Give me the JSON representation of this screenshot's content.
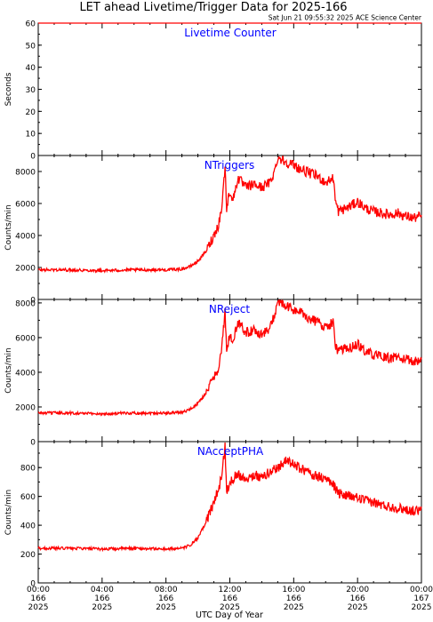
{
  "title": "LET ahead Livetime/Trigger Data for 2025-166",
  "subtitle": "Sat Jun 21 09:55:32 2025 ACE Science Center",
  "xlabel": "UTC Day of Year",
  "colors": {
    "line": "#ff0000",
    "panel_title": "#0000ff",
    "axes": "#000000",
    "background": "#ffffff"
  },
  "x_ticks": [
    {
      "time": "00:00",
      "day": "166",
      "year": "2025",
      "hour": 0
    },
    {
      "time": "04:00",
      "day": "166",
      "year": "2025",
      "hour": 4
    },
    {
      "time": "08:00",
      "day": "166",
      "year": "2025",
      "hour": 8
    },
    {
      "time": "12:00",
      "day": "166",
      "year": "2025",
      "hour": 12
    },
    {
      "time": "16:00",
      "day": "166",
      "year": "2025",
      "hour": 16
    },
    {
      "time": "20:00",
      "day": "166",
      "year": "2025",
      "hour": 20
    },
    {
      "time": "00:00",
      "day": "167",
      "year": "2025",
      "hour": 24
    }
  ],
  "chart_data": [
    {
      "type": "line",
      "title": "Livetime Counter",
      "ylabel": "Seconds",
      "ylim": [
        0,
        60
      ],
      "yticks": [
        0,
        10,
        20,
        30,
        40,
        50,
        60
      ],
      "x": [
        0,
        24
      ],
      "values": [
        60,
        60
      ]
    },
    {
      "type": "line",
      "title": "NTriggers",
      "ylabel": "Counts/min",
      "ylim": [
        0,
        9000
      ],
      "yticks": [
        0,
        2000,
        4000,
        6000,
        8000
      ],
      "x": [
        0,
        2,
        4,
        6,
        8,
        9,
        9.5,
        10,
        10.5,
        11,
        11.3,
        11.5,
        11.7,
        11.8,
        12,
        12.2,
        12.5,
        13,
        13.5,
        14,
        14.5,
        14.8,
        15,
        15.5,
        16,
        16.5,
        17,
        17.5,
        18,
        18.5,
        18.6,
        18.8,
        19.5,
        20,
        20.5,
        21,
        21.5,
        22,
        22.5,
        23,
        23.5,
        24
      ],
      "values": [
        1850,
        1850,
        1800,
        1850,
        1850,
        1900,
        2050,
        2400,
        3000,
        4000,
        4700,
        5800,
        8300,
        5700,
        6800,
        6200,
        7600,
        7000,
        7200,
        7000,
        7300,
        8000,
        8900,
        8600,
        8400,
        8100,
        7900,
        7700,
        7300,
        7600,
        6200,
        5500,
        5800,
        6100,
        5700,
        5500,
        5400,
        5300,
        5400,
        5200,
        5100,
        5200
      ]
    },
    {
      "type": "line",
      "title": "NReject",
      "ylabel": "Counts/min",
      "ylim": [
        0,
        8200
      ],
      "yticks": [
        0,
        2000,
        4000,
        6000,
        8000
      ],
      "x": [
        0,
        2,
        4,
        6,
        8,
        9,
        9.5,
        10,
        10.5,
        11,
        11.3,
        11.5,
        11.7,
        11.8,
        12,
        12.2,
        12.5,
        13,
        13.5,
        14,
        14.5,
        14.8,
        15,
        15.5,
        16,
        16.5,
        17,
        17.5,
        18,
        18.5,
        18.6,
        18.8,
        19.5,
        20,
        20.5,
        21,
        21.5,
        22,
        22.5,
        23,
        23.5,
        24
      ],
      "values": [
        1650,
        1650,
        1600,
        1650,
        1650,
        1700,
        1850,
        2200,
        2800,
        3700,
        4300,
        5400,
        7500,
        5100,
        6200,
        5700,
        6900,
        6300,
        6400,
        6200,
        6500,
        7300,
        8100,
        7800,
        7600,
        7400,
        7100,
        6900,
        6600,
        6900,
        5500,
        5200,
        5400,
        5600,
        5200,
        5000,
        4900,
        4800,
        4900,
        4700,
        4650,
        4700
      ]
    },
    {
      "type": "line",
      "title": "NAcceptPHA",
      "ylabel": "Counts/min",
      "ylim": [
        0,
        980
      ],
      "yticks": [
        0,
        200,
        400,
        600,
        800
      ],
      "x": [
        0,
        2,
        4,
        6,
        8,
        9,
        9.5,
        10,
        10.5,
        11,
        11.3,
        11.5,
        11.7,
        11.8,
        12,
        12.5,
        13,
        13.5,
        14,
        14.5,
        15,
        15.5,
        16,
        16.5,
        17,
        17.5,
        18,
        18.5,
        18.8,
        19.5,
        20,
        20.5,
        21,
        21.5,
        22,
        22.5,
        23,
        23.5,
        24
      ],
      "values": [
        240,
        240,
        235,
        240,
        235,
        240,
        260,
        310,
        420,
        560,
        650,
        750,
        960,
        620,
        700,
        760,
        720,
        750,
        730,
        770,
        800,
        850,
        820,
        790,
        760,
        740,
        720,
        680,
        620,
        600,
        590,
        570,
        560,
        540,
        530,
        520,
        510,
        500,
        500
      ]
    }
  ]
}
